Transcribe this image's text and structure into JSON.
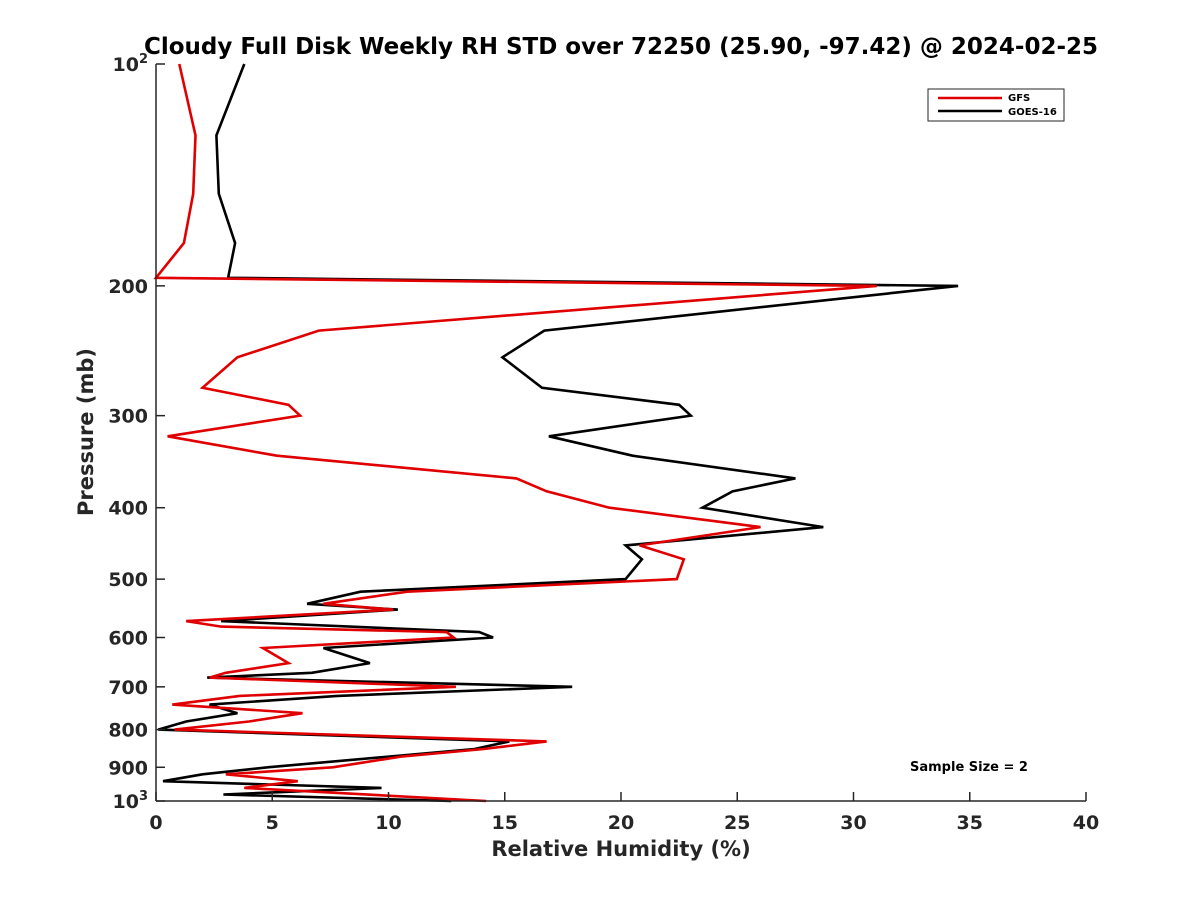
{
  "chart_data": {
    "type": "line",
    "title": "Cloudy Full Disk Weekly RH STD over 72250 (25.90, -97.42) @ 2024-02-25",
    "xlabel": "Relative Humidity (%)",
    "ylabel": "Pressure (mb)",
    "xlim": [
      0,
      40
    ],
    "ylim": [
      100,
      1000
    ],
    "yscale": "log",
    "y_reversed": true,
    "grid": false,
    "legend_position": "top-right",
    "x_ticks": [
      "0",
      "5",
      "10",
      "15",
      "20",
      "25",
      "30",
      "35",
      "40"
    ],
    "y_ticks": [
      {
        "value": 100,
        "base": "10",
        "exp": "2"
      },
      {
        "value": 200,
        "label": "200"
      },
      {
        "value": 300,
        "label": "300"
      },
      {
        "value": 400,
        "label": "400"
      },
      {
        "value": 500,
        "label": "500"
      },
      {
        "value": 600,
        "label": "600"
      },
      {
        "value": 700,
        "label": "700"
      },
      {
        "value": 800,
        "label": "800"
      },
      {
        "value": 900,
        "label": "900"
      },
      {
        "value": 1000,
        "base": "10",
        "exp": "3"
      }
    ],
    "annotation": "Sample Size = 2",
    "series": [
      {
        "name": "GFS",
        "color": "#e00000",
        "points": [
          [
            1.0,
            100
          ],
          [
            1.7,
            125
          ],
          [
            1.6,
            150
          ],
          [
            1.2,
            175
          ],
          [
            0.0,
            195
          ],
          [
            31.0,
            200
          ],
          [
            7.0,
            230
          ],
          [
            3.5,
            250
          ],
          [
            2.0,
            275
          ],
          [
            5.7,
            290
          ],
          [
            6.2,
            300
          ],
          [
            0.5,
            320
          ],
          [
            5.2,
            340
          ],
          [
            15.5,
            365
          ],
          [
            16.8,
            380
          ],
          [
            19.5,
            400
          ],
          [
            26.0,
            425
          ],
          [
            20.8,
            450
          ],
          [
            22.7,
            470
          ],
          [
            22.4,
            500
          ],
          [
            10.8,
            520
          ],
          [
            7.2,
            540
          ],
          [
            10.2,
            550
          ],
          [
            1.3,
            570
          ],
          [
            2.8,
            580
          ],
          [
            12.5,
            590
          ],
          [
            12.8,
            600
          ],
          [
            4.6,
            620
          ],
          [
            5.7,
            650
          ],
          [
            3.0,
            670
          ],
          [
            2.3,
            680
          ],
          [
            12.9,
            700
          ],
          [
            3.6,
            720
          ],
          [
            0.7,
            740
          ],
          [
            6.3,
            760
          ],
          [
            4.0,
            780
          ],
          [
            0.8,
            800
          ],
          [
            16.8,
            830
          ],
          [
            14.1,
            850
          ],
          [
            10.6,
            870
          ],
          [
            7.6,
            900
          ],
          [
            3.0,
            920
          ],
          [
            6.1,
            940
          ],
          [
            3.8,
            960
          ],
          [
            14.2,
            1000
          ]
        ]
      },
      {
        "name": "GOES-16",
        "color": "#000000",
        "points": [
          [
            3.8,
            100
          ],
          [
            2.6,
            125
          ],
          [
            2.7,
            150
          ],
          [
            3.4,
            175
          ],
          [
            3.1,
            195
          ],
          [
            34.5,
            200
          ],
          [
            16.7,
            230
          ],
          [
            14.9,
            250
          ],
          [
            16.6,
            275
          ],
          [
            22.5,
            290
          ],
          [
            23.0,
            300
          ],
          [
            16.9,
            320
          ],
          [
            20.5,
            340
          ],
          [
            27.5,
            365
          ],
          [
            24.8,
            380
          ],
          [
            23.5,
            400
          ],
          [
            28.7,
            425
          ],
          [
            20.2,
            450
          ],
          [
            20.9,
            470
          ],
          [
            20.2,
            500
          ],
          [
            8.8,
            520
          ],
          [
            6.5,
            540
          ],
          [
            10.4,
            550
          ],
          [
            2.8,
            570
          ],
          [
            13.9,
            590
          ],
          [
            14.5,
            600
          ],
          [
            7.2,
            620
          ],
          [
            9.2,
            650
          ],
          [
            6.7,
            670
          ],
          [
            2.2,
            680
          ],
          [
            17.9,
            700
          ],
          [
            7.8,
            720
          ],
          [
            2.3,
            740
          ],
          [
            3.5,
            760
          ],
          [
            1.3,
            780
          ],
          [
            0.1,
            800
          ],
          [
            15.2,
            830
          ],
          [
            13.7,
            850
          ],
          [
            4.8,
            900
          ],
          [
            2.0,
            920
          ],
          [
            0.3,
            940
          ],
          [
            9.7,
            960
          ],
          [
            2.9,
            980
          ],
          [
            12.7,
            1000
          ]
        ]
      }
    ]
  }
}
